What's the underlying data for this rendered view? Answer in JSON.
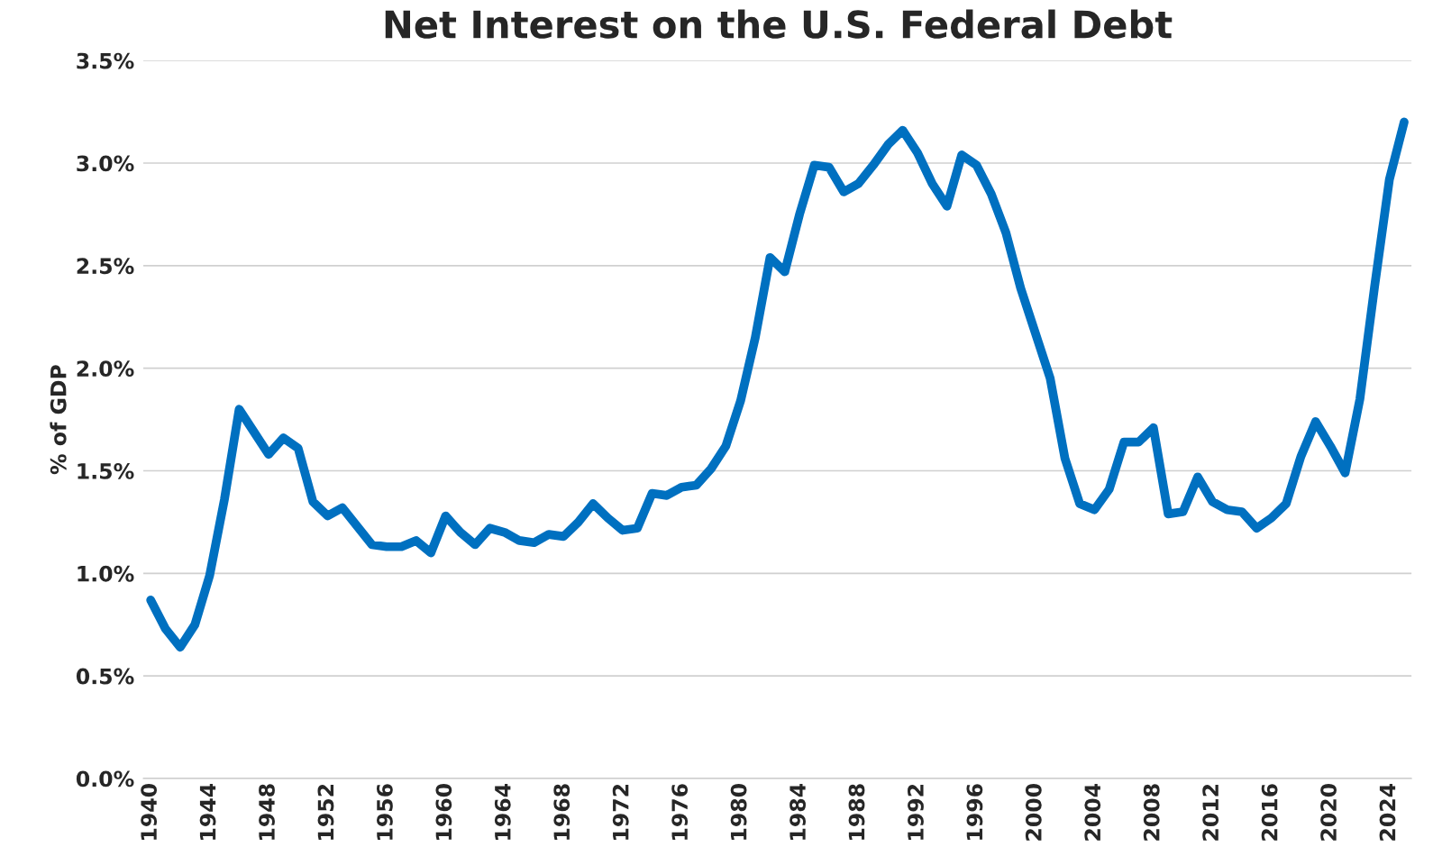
{
  "chart_data": {
    "type": "line",
    "title": "Net Interest on the U.S. Federal Debt",
    "ylabel": "% of GDP",
    "categories": [
      "1940",
      null,
      null,
      null,
      "1944",
      null,
      null,
      null,
      "1948",
      null,
      null,
      null,
      "1952",
      null,
      null,
      null,
      "1956",
      null,
      null,
      null,
      "1960",
      null,
      null,
      null,
      "1964",
      null,
      null,
      null,
      "1968",
      null,
      null,
      null,
      "1972",
      null,
      null,
      null,
      "1976",
      null,
      null,
      null,
      "1980",
      null,
      null,
      null,
      "1984",
      null,
      null,
      null,
      "1988",
      null,
      null,
      null,
      "1992",
      null,
      null,
      null,
      "1996",
      null,
      null,
      null,
      "2000",
      null,
      null,
      null,
      "2004",
      null,
      null,
      null,
      "2008",
      null,
      null,
      null,
      "2012",
      null,
      null,
      null,
      "2016",
      null,
      null,
      null,
      "2020",
      null,
      null,
      null,
      "2024",
      null
    ],
    "series": [
      {
        "color": "#0070c0",
        "values": [
          0.87,
          0.73,
          0.64,
          0.75,
          0.99,
          1.36,
          1.8,
          1.69,
          1.58,
          1.66,
          1.61,
          1.35,
          1.28,
          1.32,
          1.23,
          1.14,
          1.13,
          1.13,
          1.16,
          1.1,
          1.28,
          1.2,
          1.14,
          1.22,
          1.2,
          1.16,
          1.15,
          1.19,
          1.18,
          1.25,
          1.34,
          1.27,
          1.21,
          1.22,
          1.39,
          1.38,
          1.42,
          1.43,
          1.51,
          1.62,
          1.84,
          2.15,
          2.54,
          2.47,
          2.75,
          2.99,
          2.98,
          2.86,
          2.9,
          2.99,
          3.09,
          3.16,
          3.05,
          2.9,
          2.79,
          3.04,
          2.99,
          2.85,
          2.66,
          2.39,
          2.17,
          1.95,
          1.56,
          1.34,
          1.31,
          1.41,
          1.64,
          1.64,
          1.71,
          1.29,
          1.3,
          1.47,
          1.35,
          1.31,
          1.3,
          1.22,
          1.27,
          1.34,
          1.57,
          1.74,
          1.62,
          1.49,
          1.85,
          2.4,
          2.92,
          3.2
        ]
      }
    ],
    "ylim": [
      0,
      3.5
    ],
    "yticks": [
      {
        "value": 0,
        "label": "0.0%"
      },
      {
        "value": 0.5,
        "label": "0.5%"
      },
      {
        "value": 1,
        "label": "1.0%"
      },
      {
        "value": 1.5,
        "label": "1.5%"
      },
      {
        "value": 2,
        "label": "2.0%"
      },
      {
        "value": 2.5,
        "label": "2.5%"
      },
      {
        "value": 3,
        "label": "3.0%"
      },
      {
        "value": 3.5,
        "label": "3.5%"
      }
    ],
    "grid": "y",
    "legend": false,
    "marker": "none",
    "line_style": "solid"
  }
}
